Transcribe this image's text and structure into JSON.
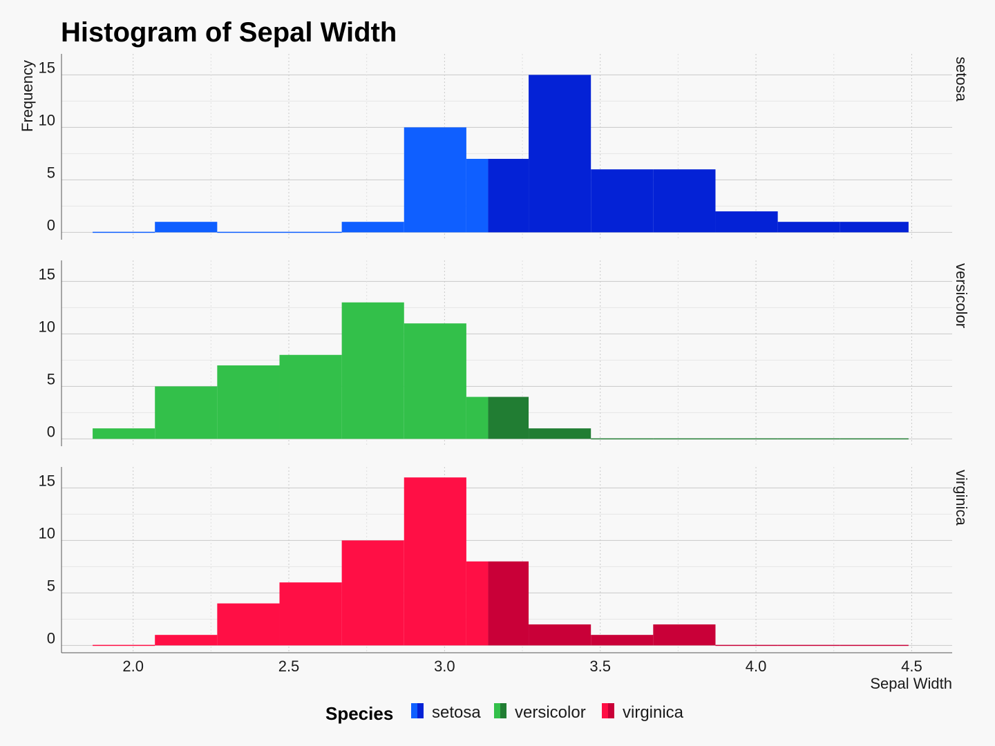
{
  "chart_data": {
    "type": "bar",
    "title": "Histogram of Sepal Width",
    "xlabel": "Sepal Width",
    "ylabel": "Frequency",
    "xlim": [
      1.77,
      4.63
    ],
    "ylim": [
      -0.7,
      17
    ],
    "x_ticks": [
      "2.0",
      "2.5",
      "3.0",
      "3.5",
      "4.0",
      "4.5"
    ],
    "x_tick_values": [
      2.0,
      2.5,
      3.0,
      3.5,
      4.0,
      4.5
    ],
    "y_ticks": [
      "0",
      "5",
      "10",
      "15"
    ],
    "y_tick_values": [
      0,
      5,
      10,
      15
    ],
    "bin_edges": [
      1.87,
      2.07,
      2.27,
      2.47,
      2.67,
      2.87,
      3.07,
      3.14,
      3.27,
      3.47,
      3.67,
      3.87,
      4.07,
      4.27,
      4.49
    ],
    "split_value": 3.14,
    "grid": true,
    "legend_position": "bottom",
    "legend_title": "Species",
    "series": [
      {
        "name": "setosa",
        "facet_label": "setosa",
        "color_light": "#0f5fff",
        "color_dark": "#0422d6",
        "values": [
          0,
          1,
          0,
          0,
          1,
          10,
          7,
          7,
          15,
          6,
          6,
          2,
          1,
          1
        ]
      },
      {
        "name": "versicolor",
        "facet_label": "versicolor",
        "color_light": "#33c04a",
        "color_dark": "#217d33",
        "values": [
          1,
          5,
          7,
          8,
          13,
          11,
          4,
          4,
          1,
          0,
          0,
          0,
          0,
          0
        ]
      },
      {
        "name": "virginica",
        "facet_label": "virginica",
        "color_light": "#ff0f45",
        "color_dark": "#c90038",
        "values": [
          0,
          1,
          4,
          6,
          10,
          16,
          8,
          8,
          2,
          1,
          2,
          0,
          0,
          0
        ]
      }
    ]
  }
}
